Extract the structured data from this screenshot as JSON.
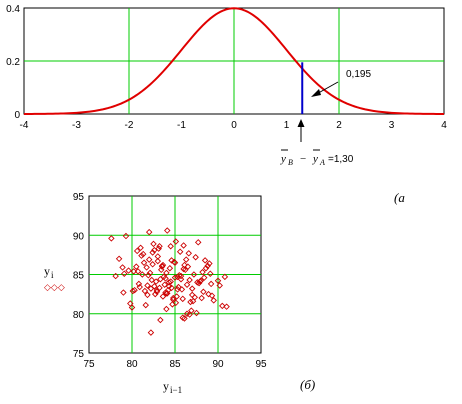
{
  "chart_data": [
    {
      "type": "line",
      "title": "",
      "xlabel": "",
      "ylabel": "",
      "xlim": [
        -4,
        4
      ],
      "ylim": [
        0,
        0.4
      ],
      "x_ticks": [
        "-4",
        "-3",
        "-2",
        "-1",
        "0",
        "1",
        "2",
        "3",
        "4"
      ],
      "y_ticks": [
        "0",
        "0.2",
        "0.4"
      ],
      "grid": true,
      "series": [
        {
          "name": "",
          "color": "#e00000",
          "x": [
            -4,
            -3.5,
            -3,
            -2.5,
            -2,
            -1.5,
            -1,
            -0.5,
            0,
            0.5,
            1,
            1.5,
            2,
            2.5,
            3,
            3.5,
            4
          ],
          "y": [
            0.0001,
            0.0009,
            0.0044,
            0.0175,
            0.054,
            0.1295,
            0.242,
            0.352,
            0.399,
            0.352,
            0.242,
            0.1295,
            0.054,
            0.0175,
            0.0044,
            0.0009,
            0.0001
          ]
        }
      ],
      "marker_line": {
        "x": 1.3,
        "y_top": 0.195,
        "color": "#0000cc"
      },
      "annotation_value": "0,195",
      "annotation_formula": {
        "y1": "y",
        "sub1": "B",
        "minus": "−",
        "y2": "y",
        "sub2": "A",
        "eq": "=1,30"
      },
      "caption": "(а"
    },
    {
      "type": "scatter",
      "title": "",
      "xlabel": "y",
      "xlabel_sub": "i−1",
      "ylabel": "y",
      "ylabel_sub": "i",
      "legend_marker": "◇◇◇",
      "xlim": [
        75,
        95
      ],
      "ylim": [
        75,
        95
      ],
      "x_ticks": [
        "75",
        "80",
        "85",
        "90",
        "95"
      ],
      "y_ticks": [
        "75",
        "80",
        "85",
        "90",
        "95"
      ],
      "grid": true,
      "marker_color": "#cc0000",
      "x": [
        78.1,
        80.5,
        81.8,
        82.6,
        83.4,
        84.2,
        85.0,
        85.9,
        86.7,
        87.4,
        88.3,
        89.1,
        90.2,
        91.0,
        79.3,
        80.9,
        82.0,
        82.8,
        83.6,
        84.5,
        85.3,
        86.1,
        86.9,
        87.8,
        88.6,
        89.5,
        77.6,
        79.0,
        80.2,
        81.3,
        82.2,
        83.0,
        83.9,
        84.7,
        85.6,
        86.4,
        87.2,
        88.1,
        89.0,
        90.0,
        80.0,
        81.0,
        81.9,
        82.7,
        83.5,
        84.3,
        85.1,
        86.0,
        86.8,
        87.6,
        88.5,
        89.3,
        78.5,
        79.8,
        80.8,
        81.7,
        82.5,
        83.3,
        84.1,
        84.9,
        85.8,
        86.6,
        87.5,
        88.4,
        79.6,
        80.6,
        81.5,
        82.4,
        83.2,
        84.0,
        84.8,
        85.7,
        86.5,
        87.3,
        88.2,
        89.2,
        90.5,
        81.1,
        82.1,
        82.9,
        83.7,
        84.6,
        85.4,
        86.2,
        87.0,
        87.9,
        78.9,
        80.3,
        81.4,
        82.3,
        83.1,
        83.8,
        84.4,
        85.2,
        86.3,
        87.1,
        88.0,
        88.8,
        80.1,
        81.2,
        82.0,
        83.0,
        84.0,
        85.0,
        86.0,
        87.0,
        84.8,
        83.3,
        82.6,
        85.5,
        86.4,
        81.6,
        84.1,
        83.6,
        85.9,
        82.9,
        84.5,
        86.7,
        80.7,
        88.9,
        83.2,
        84.3,
        85.1,
        82.4,
        81.8,
        86.1,
        87.7,
        79.1,
        90.8,
        83.9,
        85.7,
        84.6,
        82.2,
        83.5,
        85.3,
        84.0
      ],
      "y": [
        84.8,
        86.0,
        82.4,
        88.1,
        85.6,
        83.0,
        86.5,
        81.9,
        84.3,
        87.2,
        82.8,
        85.1,
        83.6,
        80.9,
        89.9,
        83.4,
        86.9,
        84.1,
        82.2,
        88.6,
        84.7,
        86.2,
        80.4,
        83.9,
        85.8,
        81.7,
        89.6,
        82.7,
        85.4,
        87.6,
        83.2,
        86.7,
        84.5,
        81.2,
        87.9,
        83.7,
        85.0,
        82.0,
        86.4,
        84.2,
        80.8,
        88.4,
        84.9,
        82.5,
        86.1,
        83.5,
        89.2,
        85.7,
        81.5,
        84.0,
        86.8,
        82.3,
        87.0,
        81.3,
        83.8,
        85.9,
        88.9,
        84.4,
        82.6,
        86.6,
        83.1,
        87.7,
        80.1,
        84.6,
        85.5,
        88.0,
        82.9,
        86.3,
        83.3,
        85.2,
        81.8,
        84.8,
        86.0,
        82.1,
        85.3,
        83.8,
        81.0,
        87.4,
        85.2,
        82.8,
        84.7,
        86.8,
        83.4,
        85.6,
        82.4,
        84.1,
        85.9,
        83.0,
        86.5,
        84.3,
        88.3,
        83.7,
        85.8,
        82.2,
        86.9,
        81.6,
        84.2,
        86.1,
        82.9,
        85.0,
        90.4,
        87.3,
        80.6,
        84.6,
        88.7,
        83.2,
        82.0,
        79.2,
        83.5,
        84.9,
        80.0,
        81.1,
        90.6,
        86.2,
        79.5,
        83.0,
        84.1,
        79.9,
        85.4,
        82.5,
        88.6,
        84.0,
        81.4,
        87.8,
        83.6,
        79.4,
        89.1,
        85.1,
        84.7,
        82.7,
        84.4,
        83.3,
        77.6,
        86.0,
        83.1,
        82.6
      ]
    }
  ]
}
